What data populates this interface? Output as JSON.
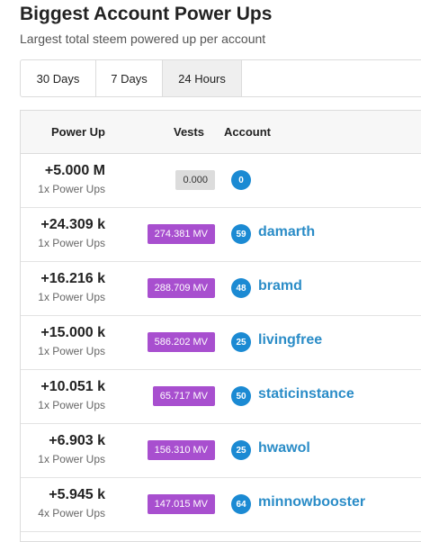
{
  "header": {
    "title": "Biggest Account Power Ups",
    "subtitle": "Largest total steem powered up per account"
  },
  "tabs": [
    {
      "label": "30 Days",
      "active": false
    },
    {
      "label": "7 Days",
      "active": false
    },
    {
      "label": "24 Hours",
      "active": true
    }
  ],
  "table": {
    "columns": {
      "power_up": "Power Up",
      "vests": "Vests",
      "account": "Account"
    },
    "rows": [
      {
        "amount": "+5.000 M",
        "count": "1x Power Ups",
        "vests": "0.000",
        "vests_style": "grey",
        "rep": "0",
        "account": ""
      },
      {
        "amount": "+24.309 k",
        "count": "1x Power Ups",
        "vests": "274.381 MV",
        "vests_style": "purple",
        "rep": "59",
        "account": "damarth"
      },
      {
        "amount": "+16.216 k",
        "count": "1x Power Ups",
        "vests": "288.709 MV",
        "vests_style": "purple",
        "rep": "48",
        "account": "bramd"
      },
      {
        "amount": "+15.000 k",
        "count": "1x Power Ups",
        "vests": "586.202 MV",
        "vests_style": "purple",
        "rep": "25",
        "account": "livingfree"
      },
      {
        "amount": "+10.051 k",
        "count": "1x Power Ups",
        "vests": "65.717 MV",
        "vests_style": "purple",
        "rep": "50",
        "account": "staticinstance"
      },
      {
        "amount": "+6.903 k",
        "count": "1x Power Ups",
        "vests": "156.310 MV",
        "vests_style": "purple",
        "rep": "25",
        "account": "hwawol"
      },
      {
        "amount": "+5.945 k",
        "count": "4x Power Ups",
        "vests": "147.015 MV",
        "vests_style": "purple",
        "rep": "64",
        "account": "minnowbooster"
      }
    ]
  },
  "colors": {
    "vests_purple": "#a84fcf",
    "rep_badge": "#1b8ad3",
    "account_link": "#2a8cc7"
  }
}
